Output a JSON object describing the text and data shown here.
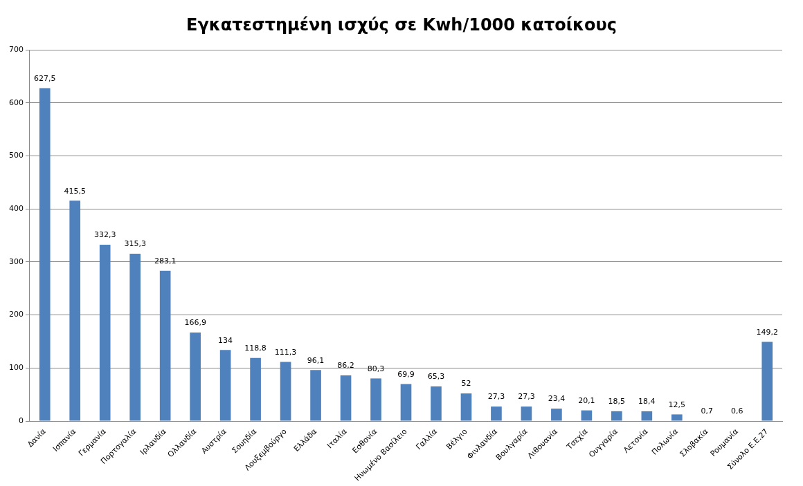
{
  "chart_data": {
    "type": "bar",
    "title": "Εγκατεστημένη ισχύς σε Kwh/1000 κατοίκους",
    "categories": [
      "Δανία",
      "Ισπανία",
      "Γερμανία",
      "Πορτογαλία",
      "Ιρλανδία",
      "Ολλανδία",
      "Αυστρία",
      "Σουηδία",
      "Λουξεμβούργο",
      "Ελλάδα",
      "Ιταλία",
      "Εσθονία",
      "Ηνωμένο Βασίλειο",
      "Γαλλία",
      "Βέλγιο",
      "Φινλανδία",
      "Βουλγαρία",
      "Λιθουανία",
      "Τσεχία",
      "Ουγγαρία",
      "Λετονία",
      "Πολωνία",
      "Σλοβακία",
      "Ρουμανία",
      "Σύνολο Ε.Ε.27"
    ],
    "values": [
      627.5,
      415.5,
      332.3,
      315.3,
      283.1,
      166.9,
      134,
      118.8,
      111.3,
      96.1,
      86.2,
      80.3,
      69.9,
      65.3,
      52,
      27.3,
      27.3,
      23.4,
      20.1,
      18.5,
      18.4,
      12.5,
      0.7,
      0.6,
      149.2
    ],
    "value_labels": [
      "627,5",
      "415,5",
      "332,3",
      "315,3",
      "283,1",
      "166,9",
      "134",
      "118,8",
      "111,3",
      "96,1",
      "86,2",
      "80,3",
      "69,9",
      "65,3",
      "52",
      "27,3",
      "27,3",
      "23,4",
      "20,1",
      "18,5",
      "18,4",
      "12,5",
      "0,7",
      "0,6",
      "149,2"
    ],
    "color": "#4f81bd",
    "ylim": [
      0,
      700
    ],
    "yticks": [
      0,
      100,
      200,
      300,
      400,
      500,
      600,
      700
    ],
    "grid": "y",
    "legend": false
  }
}
